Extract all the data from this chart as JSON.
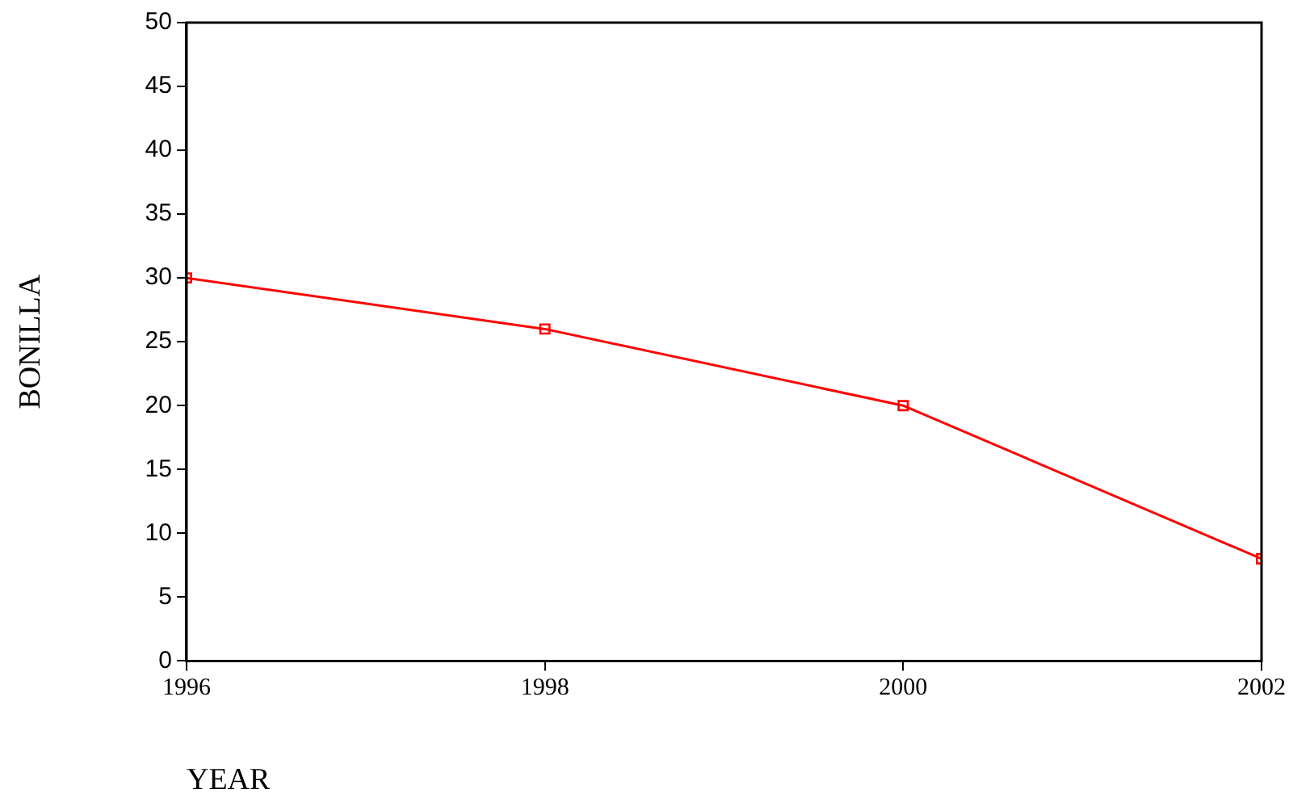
{
  "chart_data": {
    "type": "line",
    "xlabel": "YEAR",
    "ylabel": "BONILLA",
    "x": [
      1996,
      1998,
      2000,
      2002
    ],
    "series": [
      {
        "color": "#ff0000",
        "values": [
          30,
          26,
          20,
          8
        ]
      }
    ],
    "xlim": [
      1996,
      2002
    ],
    "xticks": [
      1996,
      1998,
      2000,
      2002
    ],
    "ylim": [
      0,
      50
    ],
    "yticks": [
      0,
      5,
      10,
      15,
      20,
      25,
      30,
      35,
      40,
      45,
      50
    ],
    "grid": false,
    "legend": false,
    "marker": "square",
    "line_style": "solid"
  }
}
